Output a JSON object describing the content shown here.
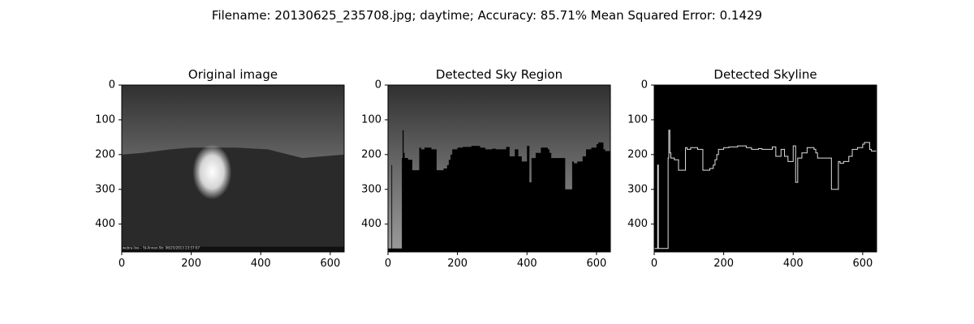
{
  "suptitle": "Filename: 20130625_235708.jpg; daytime; Accuracy: 85.71% Mean Squared Error: 0.1429",
  "colors": {
    "background": "#ffffff",
    "axes_frame": "#000000",
    "black_region": "#000000",
    "skyline_line": "#e0e0e0",
    "sky_dark": "#303030",
    "sky_mid": "#6a6a6a",
    "sky_light": "#9a9a9a",
    "glow": "#ffffff"
  },
  "chart_data": [
    {
      "type": "image",
      "title": "Original image",
      "xlim": [
        0,
        640
      ],
      "ylim": [
        480,
        0
      ],
      "x_ticks": [
        0,
        200,
        400,
        600
      ],
      "y_ticks": [
        0,
        100,
        200,
        300,
        400
      ],
      "overlay_text": "webra.live – St-Annen-Str. 06/25/2013 23:57:07"
    },
    {
      "type": "image",
      "title": "Detected Sky Region",
      "xlim": [
        0,
        640
      ],
      "ylim": [
        480,
        0
      ],
      "x_ticks": [
        0,
        200,
        400,
        600
      ],
      "y_ticks": [
        0,
        100,
        200,
        300,
        400
      ]
    },
    {
      "type": "line",
      "title": "Detected Skyline",
      "xlim": [
        0,
        640
      ],
      "ylim": [
        480,
        0
      ],
      "x_ticks": [
        0,
        200,
        400,
        600
      ],
      "y_ticks": [
        0,
        100,
        200,
        300,
        400
      ],
      "series": [
        {
          "x": [
            0,
            10,
            10,
            12,
            12,
            40,
            40,
            42,
            42,
            45,
            45,
            48,
            48,
            58,
            58,
            70,
            70,
            90,
            90,
            95,
            95,
            105,
            105,
            125,
            125,
            140,
            140,
            160,
            160,
            170,
            170,
            175,
            175,
            180,
            180,
            185,
            185,
            200,
            200,
            215,
            215,
            240,
            240,
            265,
            265,
            280,
            280,
            300,
            300,
            310,
            310,
            340,
            340,
            350,
            350,
            365,
            365,
            375,
            375,
            385,
            385,
            400,
            400,
            407,
            407,
            413,
            413,
            425,
            425,
            430,
            430,
            440,
            440,
            460,
            460,
            465,
            465,
            470,
            470,
            510,
            510,
            518,
            518,
            530,
            530,
            535,
            535,
            545,
            545,
            560,
            560,
            570,
            570,
            585,
            585,
            600,
            600,
            605,
            605,
            620,
            620,
            625,
            625,
            640
          ],
          "y": [
            470,
            470,
            230,
            230,
            470,
            470,
            210,
            210,
            130,
            130,
            195,
            195,
            210,
            210,
            215,
            215,
            245,
            245,
            180,
            180,
            185,
            185,
            180,
            180,
            185,
            185,
            245,
            245,
            240,
            240,
            230,
            230,
            215,
            215,
            200,
            200,
            185,
            185,
            180,
            180,
            178,
            178,
            175,
            175,
            180,
            180,
            185,
            185,
            183,
            183,
            185,
            185,
            178,
            178,
            205,
            205,
            185,
            185,
            205,
            205,
            220,
            220,
            175,
            175,
            280,
            280,
            210,
            210,
            195,
            195,
            195,
            195,
            180,
            180,
            185,
            185,
            195,
            195,
            210,
            210,
            300,
            300,
            300,
            300,
            220,
            220,
            225,
            225,
            220,
            220,
            205,
            205,
            185,
            185,
            180,
            180,
            170,
            170,
            165,
            165,
            185,
            185,
            190,
            190
          ]
        }
      ]
    }
  ]
}
